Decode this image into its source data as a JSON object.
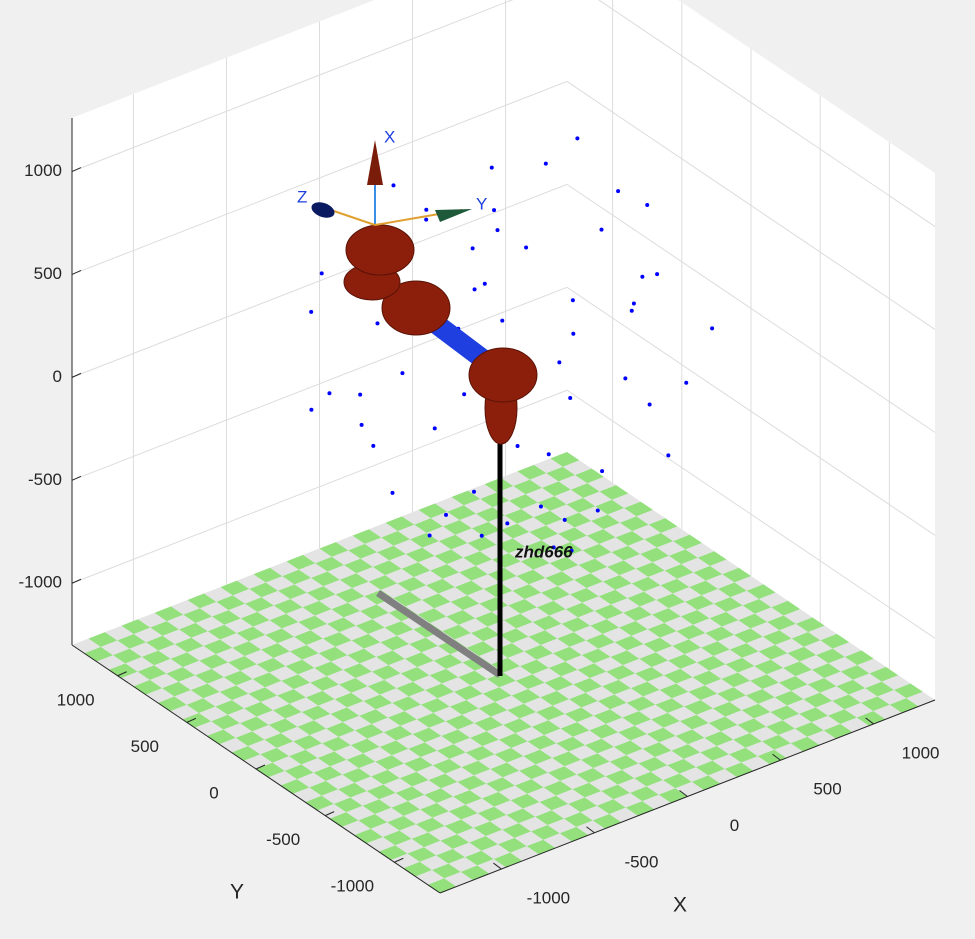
{
  "chart_data": {
    "type": "scatter3d",
    "xlabel": "X",
    "ylabel": "Y",
    "annotation": "zhd666",
    "frame_labels": [
      "X",
      "Y",
      "Z"
    ],
    "color": "#0000ff",
    "grid": true,
    "xlim": [
      -1330,
      1330
    ],
    "ylim": [
      -1330,
      1330
    ],
    "zlim": [
      -1300,
      1260
    ],
    "xticks": [
      -1000,
      -500,
      0,
      500,
      1000
    ],
    "yticks": [
      -1000,
      -500,
      0,
      500,
      1000
    ],
    "zticks": [
      -1000,
      -500,
      0,
      500,
      1000
    ],
    "x": [
      120,
      -450,
      600,
      -230,
      380,
      -610,
      90,
      -140,
      720,
      -380,
      250,
      -690,
      510,
      -50,
      310,
      -520,
      160,
      640,
      -280,
      -760,
      430,
      -20,
      560,
      -430,
      210,
      -620,
      750,
      -190,
      330,
      -700,
      60,
      -340,
      470,
      -90,
      680,
      -560,
      190,
      -400,
      580,
      -250,
      20,
      -800,
      410,
      -160,
      790,
      -480,
      280,
      -620,
      120,
      -310,
      500,
      -40,
      660,
      -580,
      350,
      -720,
      80,
      -450,
      620,
      -110
    ],
    "y": [
      -340,
      210,
      -120,
      -580,
      520,
      -90,
      680,
      -120,
      260,
      430,
      -720,
      330,
      380,
      -430,
      90,
      -410,
      300,
      -460,
      720,
      -220,
      -250,
      470,
      590,
      -680,
      -160,
      480,
      -30,
      160,
      -560,
      100,
      -800,
      -300,
      150,
      790,
      410,
      -540,
      540,
      20,
      -330,
      -740,
      250,
      -40,
      -640,
      580,
      120,
      380,
      420,
      -300,
      -520,
      -90,
      -40,
      -260,
      -620,
      610,
      680,
      420,
      80,
      -470,
      300,
      -640
    ],
    "z": [
      620,
      880,
      300,
      -150,
      40,
      410,
      560,
      1050,
      480,
      -260,
      240,
      150,
      820,
      -480,
      -390,
      700,
      960,
      90,
      320,
      -60,
      1000,
      -320,
      300,
      260,
      -560,
      640,
      720,
      -540,
      760,
      900,
      470,
      -380,
      -200,
      70,
      -80,
      20,
      -260,
      1080,
      580,
      630,
      640,
      350,
      -100,
      860,
      160,
      -100,
      560,
      -280,
      -320,
      520,
      -480,
      240,
      420,
      380,
      130,
      40,
      -640,
      960,
      940,
      -380
    ]
  }
}
